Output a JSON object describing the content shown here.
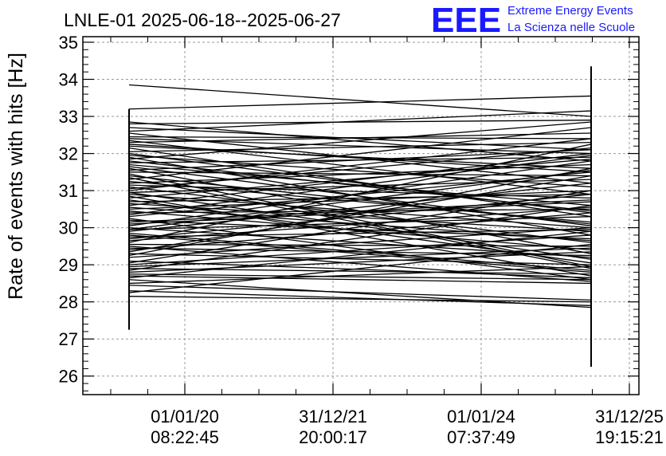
{
  "title": "LNLE-01 2025-06-18--2025-06-27",
  "logo": {
    "mark": "EEE",
    "line1": "Extreme Energy Events",
    "line2": "La Scienza nelle Scuole",
    "color": "#1a1aff"
  },
  "chart_data": {
    "type": "line",
    "title": "LNLE-01 2025-06-18--2025-06-27",
    "xlabel": "",
    "ylabel": "Rate of events with hits [Hz]",
    "ylim": [
      25.5,
      35.15
    ],
    "yticks": [
      "26",
      "27",
      "28",
      "29",
      "30",
      "31",
      "32",
      "33",
      "34",
      "35"
    ],
    "xticks": [
      {
        "line1": "01/01/20",
        "line2": "08:22:45"
      },
      {
        "line1": "31/12/21",
        "line2": "20:00:17"
      },
      {
        "line1": "01/01/24",
        "line2": "07:37:49"
      },
      {
        "line1": "31/12/25",
        "line2": "19:15:21"
      }
    ],
    "grid": true,
    "line_color": "#000000",
    "series_note_x": [
      "left",
      "right"
    ],
    "error_bars": [
      {
        "x": "left",
        "low": 27.25,
        "high": 33.2
      },
      {
        "x": "right",
        "low": 26.25,
        "high": 34.35
      }
    ],
    "segments": [
      [
        33.85,
        33.0
      ],
      [
        33.2,
        33.55
      ],
      [
        32.85,
        31.8
      ],
      [
        32.8,
        32.9
      ],
      [
        32.7,
        32.1
      ],
      [
        32.6,
        33.15
      ],
      [
        32.55,
        31.2
      ],
      [
        32.45,
        32.4
      ],
      [
        32.35,
        30.9
      ],
      [
        32.3,
        32.55
      ],
      [
        32.2,
        31.6
      ],
      [
        32.15,
        30.3
      ],
      [
        32.05,
        32.3
      ],
      [
        31.95,
        31.1
      ],
      [
        31.9,
        29.8
      ],
      [
        31.85,
        32.85
      ],
      [
        31.75,
        31.9
      ],
      [
        31.7,
        30.6
      ],
      [
        31.6,
        29.3
      ],
      [
        31.55,
        32.1
      ],
      [
        31.5,
        31.4
      ],
      [
        31.4,
        30.1
      ],
      [
        31.35,
        28.9
      ],
      [
        31.3,
        32.7
      ],
      [
        31.2,
        31.7
      ],
      [
        31.15,
        30.8
      ],
      [
        31.1,
        29.6
      ],
      [
        31.0,
        32.4
      ],
      [
        30.95,
        31.3
      ],
      [
        30.9,
        30.0
      ],
      [
        30.85,
        28.7
      ],
      [
        30.8,
        31.85
      ],
      [
        30.7,
        30.9
      ],
      [
        30.65,
        29.9
      ],
      [
        30.6,
        32.0
      ],
      [
        30.5,
        31.0
      ],
      [
        30.45,
        29.4
      ],
      [
        30.4,
        30.5
      ],
      [
        30.3,
        31.5
      ],
      [
        30.25,
        28.6
      ],
      [
        30.2,
        29.7
      ],
      [
        30.1,
        30.7
      ],
      [
        30.05,
        31.8
      ],
      [
        30.0,
        29.2
      ],
      [
        29.95,
        30.3
      ],
      [
        29.9,
        31.2
      ],
      [
        29.8,
        28.8
      ],
      [
        29.75,
        29.95
      ],
      [
        29.7,
        30.9
      ],
      [
        29.6,
        32.25
      ],
      [
        29.55,
        29.5
      ],
      [
        29.5,
        28.55
      ],
      [
        29.4,
        30.4
      ],
      [
        29.35,
        31.4
      ],
      [
        29.3,
        29.0
      ],
      [
        29.2,
        30.0
      ],
      [
        29.1,
        28.65
      ],
      [
        29.05,
        31.0
      ],
      [
        29.0,
        29.8
      ],
      [
        28.9,
        28.75
      ],
      [
        28.85,
        30.6
      ],
      [
        28.8,
        29.35
      ],
      [
        28.7,
        28.5
      ],
      [
        28.65,
        29.9
      ],
      [
        28.6,
        27.85
      ],
      [
        28.5,
        28.95
      ],
      [
        28.45,
        28.05
      ],
      [
        28.3,
        27.9
      ],
      [
        28.25,
        29.55
      ],
      [
        28.15,
        28.0
      ],
      [
        31.25,
        30.15
      ],
      [
        30.75,
        29.05
      ],
      [
        30.35,
        31.95
      ],
      [
        29.65,
        30.55
      ],
      [
        29.25,
        31.6
      ],
      [
        28.95,
        29.45
      ],
      [
        32.0,
        30.4
      ],
      [
        31.45,
        28.95
      ],
      [
        30.55,
        29.65
      ],
      [
        29.85,
        28.85
      ],
      [
        31.65,
        30.05
      ],
      [
        30.15,
        30.75
      ],
      [
        29.45,
        29.25
      ],
      [
        32.25,
        31.5
      ],
      [
        31.05,
        32.15
      ],
      [
        30.95,
        29.15
      ],
      [
        29.95,
        31.55
      ],
      [
        28.75,
        28.6
      ],
      [
        32.4,
        32.0
      ],
      [
        31.8,
        30.45
      ]
    ]
  }
}
